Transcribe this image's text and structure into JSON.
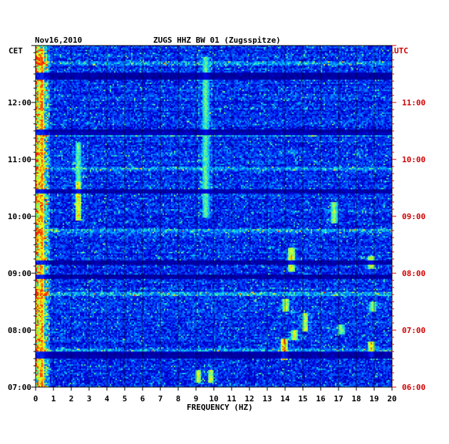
{
  "chart_data": {
    "type": "heatmap",
    "date_label": "Nov16,2010",
    "title": "ZUGS HHZ BW 01 (Zugsspitze)",
    "left_axis_label": "CET",
    "right_axis_label": "UTC",
    "xlabel": "FREQUENCY (HZ)",
    "x_ticks": [
      "0",
      "1",
      "2",
      "3",
      "4",
      "5",
      "6",
      "7",
      "8",
      "9",
      "10",
      "11",
      "12",
      "13",
      "14",
      "15",
      "16",
      "17",
      "18",
      "19",
      "20"
    ],
    "xlim": [
      0,
      20
    ],
    "left_time_ticks": [
      "12:00",
      "11:00",
      "10:00",
      "09:00",
      "08:00",
      "07:00"
    ],
    "right_time_ticks": [
      "11:00",
      "10:00",
      "09:00",
      "08:00",
      "07:00",
      "06:00"
    ],
    "time_range_cet_hours": [
      7.0,
      12.95
    ],
    "colors": {
      "low": "#0000a0",
      "mid": "#00a0ff",
      "high": "#ffff00",
      "peak": "#ff2000",
      "right_axis": "#d00000"
    },
    "highlights": [
      {
        "freq": 0.3,
        "t_start": 7.0,
        "t_end": 12.95,
        "level": 0.9
      },
      {
        "freq": 2.35,
        "t_start": 9.95,
        "t_end": 10.6,
        "level": 0.85
      },
      {
        "freq": 2.35,
        "t_start": 10.6,
        "t_end": 11.3,
        "level": 0.7
      },
      {
        "freq": 9.5,
        "t_start": 10.0,
        "t_end": 12.8,
        "level": 0.7
      },
      {
        "freq": 9.1,
        "t_start": 7.1,
        "t_end": 7.3,
        "level": 0.8
      },
      {
        "freq": 9.8,
        "t_start": 7.1,
        "t_end": 7.3,
        "level": 0.8
      },
      {
        "freq": 13.9,
        "t_start": 7.5,
        "t_end": 7.85,
        "level": 0.9
      },
      {
        "freq": 14.0,
        "t_start": 8.35,
        "t_end": 8.55,
        "level": 0.8
      },
      {
        "freq": 14.3,
        "t_start": 9.05,
        "t_end": 9.45,
        "level": 0.85
      },
      {
        "freq": 14.5,
        "t_start": 7.85,
        "t_end": 8.0,
        "level": 0.8
      },
      {
        "freq": 15.1,
        "t_start": 8.0,
        "t_end": 8.3,
        "level": 0.8
      },
      {
        "freq": 17.1,
        "t_start": 7.95,
        "t_end": 8.1,
        "level": 0.75
      },
      {
        "freq": 18.8,
        "t_start": 7.55,
        "t_end": 7.8,
        "level": 0.85
      },
      {
        "freq": 18.8,
        "t_start": 9.1,
        "t_end": 9.3,
        "level": 0.8
      },
      {
        "freq": 18.9,
        "t_start": 8.35,
        "t_end": 8.5,
        "level": 0.75
      },
      {
        "freq": 16.7,
        "t_start": 9.9,
        "t_end": 10.25,
        "level": 0.75
      }
    ],
    "bright_rows_cet": [
      7.65,
      8.65,
      9.75,
      10.85,
      11.45,
      12.7
    ],
    "dark_rows_cet": [
      7.6,
      7.55,
      8.95,
      9.2,
      10.45,
      11.48,
      11.5,
      12.5,
      12.45
    ]
  }
}
